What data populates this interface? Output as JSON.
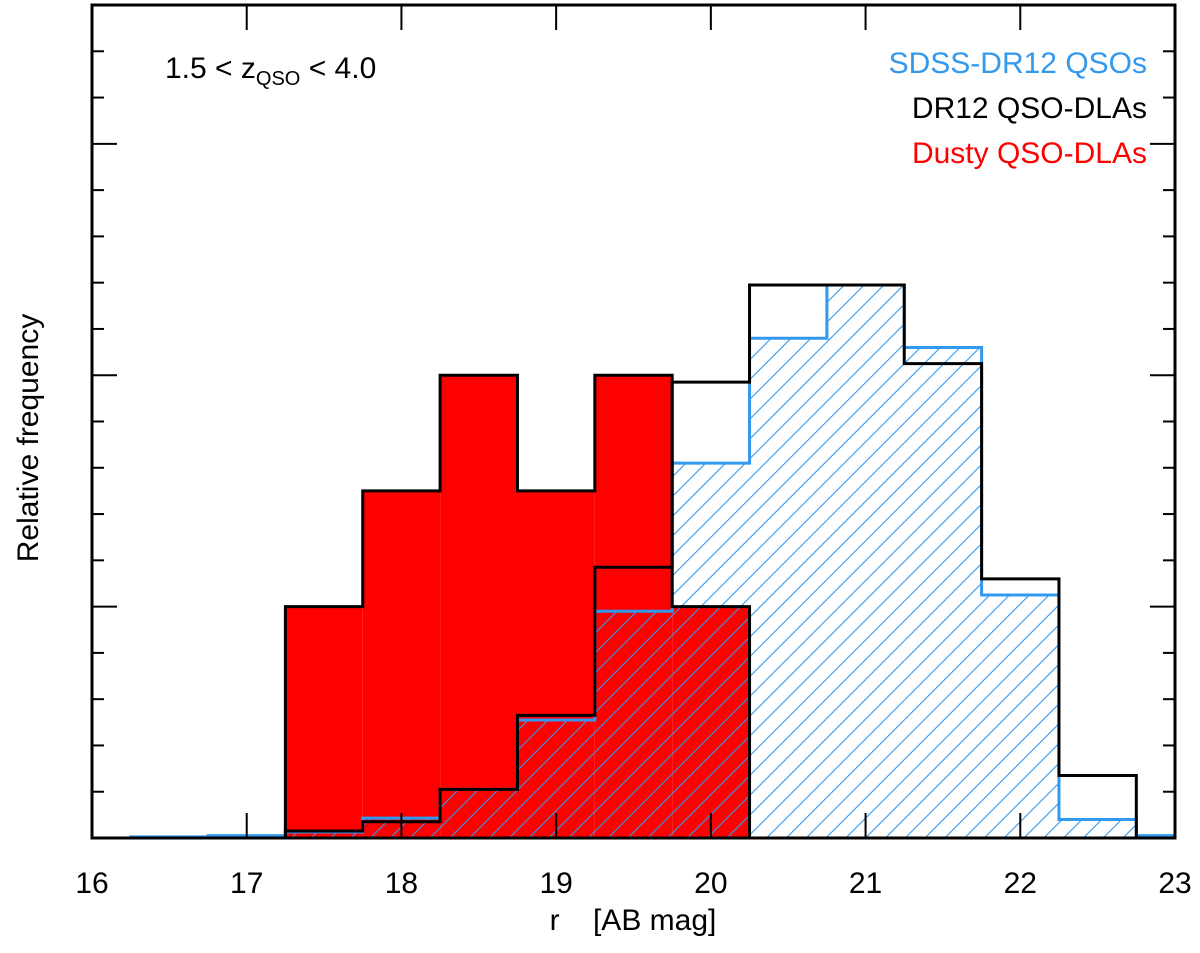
{
  "chart_data": {
    "type": "histogram",
    "annotation": [
      "1.5 < z",
      "QSO",
      " < 4.0"
    ],
    "xlabel": "r    [AB mag]",
    "ylabel": "Relative frequency",
    "bins": [
      16.25,
      16.75,
      17.25,
      17.75,
      18.25,
      18.75,
      19.25,
      19.75,
      20.25,
      20.75,
      21.25,
      21.75,
      22.25,
      22.75,
      23.25
    ],
    "series": [
      {
        "name": "Dusty QSO-DLAs",
        "color": "#ff0000",
        "fill": "solid",
        "values": [
          0,
          0,
          0.1,
          0.15,
          0.2,
          0.15,
          0.2,
          0.1,
          0,
          0,
          0,
          0,
          0,
          0
        ]
      },
      {
        "name": "SDSS-DR12 QSOs",
        "color": "#3399ee",
        "fill": "hatch",
        "values": [
          0.0005,
          0.001,
          0.0026,
          0.0086,
          0.021,
          0.051,
          0.098,
          0.162,
          0.216,
          0.239,
          0.212,
          0.105,
          0.008,
          0.001
        ]
      },
      {
        "name": "DR12 QSO-DLAs",
        "color": "#000000",
        "fill": "none",
        "values": [
          0,
          0,
          0.003,
          0.007,
          0.021,
          0.053,
          0.117,
          0.197,
          0.239,
          0.239,
          0.205,
          0.112,
          0.027,
          0
        ]
      }
    ],
    "legend_order": [
      1,
      2,
      0
    ],
    "xlim": [
      16,
      23
    ],
    "xticks": [
      16,
      17,
      18,
      19,
      20,
      21,
      22,
      23
    ],
    "ylim": [
      0,
      0.36
    ],
    "yticks": [
      0.1,
      0.2,
      0.3
    ],
    "yminor": [
      0.02,
      0.04,
      0.06,
      0.08,
      0.12,
      0.14,
      0.16,
      0.18,
      0.22,
      0.24,
      0.26,
      0.28,
      0.32,
      0.34
    ]
  }
}
